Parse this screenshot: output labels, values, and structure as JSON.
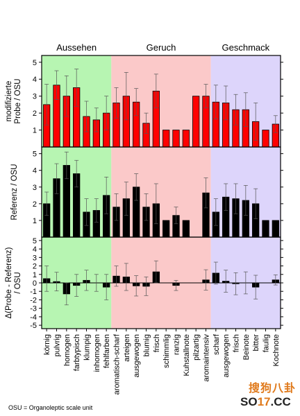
{
  "chart_data": {
    "type": "bar",
    "groups": [
      {
        "label": "Aussehen",
        "color": "#b7f5b2"
      },
      {
        "label": "Geruch",
        "color": "#fbc9c9"
      },
      {
        "label": "Geschmack",
        "color": "#ddd5fb"
      }
    ],
    "group_sizes": [
      7,
      10,
      7
    ],
    "categories": [
      "körnig",
      "pulvrig",
      "homogen",
      "farbtypisch",
      "klumpig",
      "inhomogen",
      "fehlfarben",
      "aromatisch-scharf",
      "arteigen",
      "ausgewogen",
      "blumig",
      "frisch",
      "schimmlig",
      "ranzig",
      "Kuhstallnote",
      "pilzartig",
      "aromaintensiv",
      "scharf",
      "ausgewogen",
      "frisch",
      "Beinote",
      "bitter",
      "faulig",
      "Kochnote"
    ],
    "panels": [
      {
        "ylabel": [
          "modifizierte",
          "Probe / OSU"
        ],
        "ylim": [
          0,
          5.4
        ],
        "yticks": [
          1,
          2,
          3,
          4,
          5
        ],
        "bar_color": "#ff0000",
        "values": [
          2.5,
          3.65,
          3.0,
          3.5,
          1.8,
          1.6,
          2.0,
          2.6,
          3.0,
          2.65,
          1.4,
          3.3,
          1.0,
          1.0,
          1.0,
          3.0,
          3.0,
          2.65,
          2.6,
          2.2,
          2.2,
          1.5,
          1.0,
          1.35
        ],
        "errors": [
          1.2,
          0.85,
          1.2,
          1.1,
          0.9,
          0.7,
          1.0,
          0.9,
          1.4,
          0.8,
          0.6,
          1.0,
          0,
          0,
          0,
          0,
          0.7,
          1.0,
          1.0,
          0.9,
          1.0,
          1.1,
          0,
          0.5
        ]
      },
      {
        "ylabel": [
          "Referenz / OSU"
        ],
        "ylim": [
          0,
          5.4
        ],
        "yticks": [
          1,
          2,
          3,
          4,
          5
        ],
        "bar_color": "#000000",
        "values": [
          2.0,
          3.5,
          4.3,
          3.8,
          1.5,
          1.6,
          2.5,
          1.8,
          2.3,
          3.0,
          1.8,
          2.0,
          1.0,
          1.3,
          1.0,
          0,
          2.65,
          1.5,
          2.4,
          2.3,
          2.2,
          2.0,
          1.0,
          1.0
        ],
        "errors": [
          0.7,
          0.9,
          0.8,
          0.8,
          0.8,
          0.7,
          1.1,
          0.8,
          1.0,
          0.8,
          0.8,
          1.2,
          0,
          0.5,
          0,
          0,
          0.9,
          0.8,
          0.8,
          0.9,
          0.9,
          0.9,
          0,
          0
        ]
      },
      {
        "ylabel": [
          "Δ(Probe - Referenz)",
          "/ OSU"
        ],
        "ylim": [
          -5.4,
          5.4
        ],
        "yticks": [
          -5,
          -4,
          -3,
          -2,
          -1,
          0,
          1,
          2,
          3,
          4,
          5
        ],
        "bar_color": "#000000",
        "values": [
          0.5,
          0.15,
          -1.3,
          -0.3,
          0.3,
          0.0,
          -0.5,
          0.8,
          0.7,
          -0.35,
          -0.4,
          1.3,
          0,
          -0.3,
          0,
          0,
          0.35,
          1.15,
          0.2,
          -0.1,
          0.0,
          -0.5,
          0,
          0.35
        ],
        "errors": [
          1.5,
          1.1,
          1.3,
          1.3,
          1.2,
          1.0,
          1.5,
          1.2,
          1.6,
          1.2,
          1.1,
          1.3,
          0,
          0.6,
          0,
          0,
          1.2,
          1.3,
          1.3,
          1.3,
          1.3,
          1.4,
          0,
          0.6
        ]
      }
    ]
  },
  "footnote": "OSU = Organoleptic scale unit",
  "watermark": {
    "top": "搜狗八卦",
    "bottom_prefix": "SO",
    "bottom_accent": "17",
    "bottom_suffix": ".CC"
  }
}
